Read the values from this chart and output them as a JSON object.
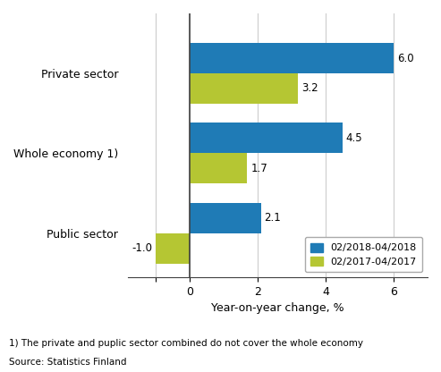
{
  "categories": [
    "Private sector",
    "Whole economy 1)",
    "Public sector"
  ],
  "series": [
    {
      "label": "02/2018-04/2018",
      "color": "#1f7bb6",
      "values": [
        6.0,
        4.5,
        2.1
      ]
    },
    {
      "label": "02/2017-04/2017",
      "color": "#b5c633",
      "values": [
        3.2,
        1.7,
        -1.0
      ]
    }
  ],
  "xlabel": "Year-on-year change, %",
  "xlim": [
    -1.8,
    7.0
  ],
  "footnote1": "1) The private and puplic sector combined do not cover the whole economy",
  "footnote2": "Source: Statistics Finland",
  "bar_height": 0.38,
  "background_color": "#ffffff",
  "grid_color": "#cccccc",
  "vline_color": "#404040"
}
